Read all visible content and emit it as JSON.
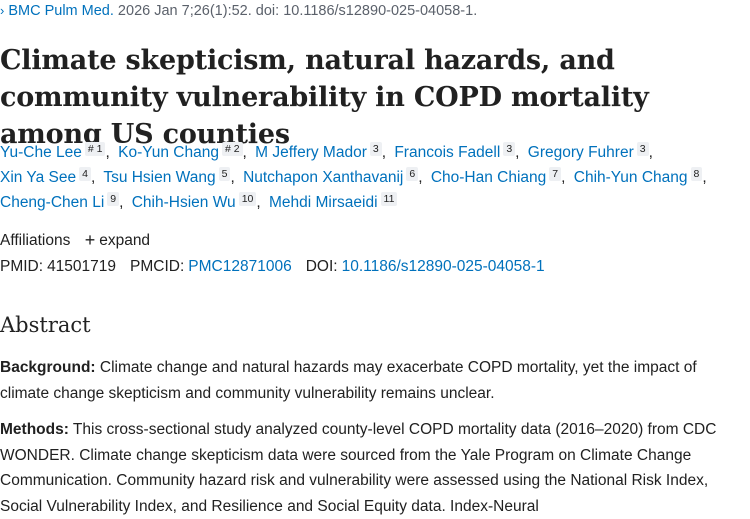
{
  "citation": {
    "chevron": "›",
    "journal": "BMC Pulm Med.",
    "details": " 2026 Jan 7;26(1):52. doi: 10.1186/s12890-025-04058-1."
  },
  "title": "Climate skepticism, natural hazards, and community vulnerability in COPD mortality among US counties",
  "authors": [
    {
      "name": "Yu-Che Lee",
      "sup": "# 1"
    },
    {
      "name": "Ko-Yun Chang",
      "sup": "# 2"
    },
    {
      "name": "M Jeffery Mador",
      "sup": "3"
    },
    {
      "name": "Francois Fadell",
      "sup": "3"
    },
    {
      "name": "Gregory Fuhrer",
      "sup": "3"
    },
    {
      "name": "Xin Ya See",
      "sup": "4"
    },
    {
      "name": "Tsu Hsien Wang",
      "sup": "5"
    },
    {
      "name": "Nutchapon Xanthavanij",
      "sup": "6"
    },
    {
      "name": "Cho-Han Chiang",
      "sup": "7"
    },
    {
      "name": "Chih-Yun Chang",
      "sup": "8"
    },
    {
      "name": "Cheng-Chen Li",
      "sup": "9"
    },
    {
      "name": "Chih-Hsien Wu",
      "sup": "10"
    },
    {
      "name": "Mehdi Mirsaeidi",
      "sup": "11"
    }
  ],
  "affiliations": {
    "label": "Affiliations",
    "expand_icon": "+",
    "expand_label": "expand"
  },
  "ids": {
    "pmid_label": "PMID:",
    "pmid": "41501719",
    "pmcid_label": "PMCID:",
    "pmcid": "PMC12871006",
    "doi_label": "DOI:",
    "doi": "10.1186/s12890-025-04058-1"
  },
  "abstract": {
    "heading": "Abstract",
    "background_label": "Background:",
    "background_text": " Climate change and natural hazards may exacerbate COPD mortality, yet the impact of climate change skepticism and community vulnerability remains unclear.",
    "methods_label": "Methods:",
    "methods_text": " This cross-sectional study analyzed county-level COPD mortality data (2016–2020) from CDC WONDER. Climate change skepticism data were sourced from the Yale Program on Climate Change Communication. Community hazard risk and vulnerability were assessed using the National Risk Index, Social Vulnerability Index, and Resilience and Social Equity data. Index-Neural"
  },
  "colors": {
    "link": "#0071bc",
    "text": "#212121",
    "muted": "#5b616b",
    "sup_bg": "#eef0f3"
  }
}
